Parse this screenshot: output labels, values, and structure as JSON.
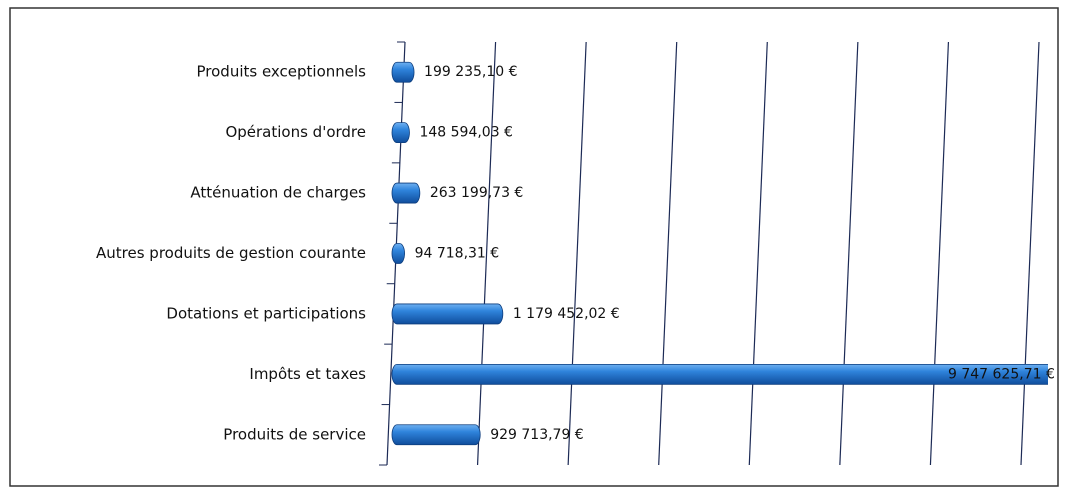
{
  "chart_data": {
    "type": "bar",
    "orientation": "horizontal",
    "categories": [
      "Produits exceptionnels",
      "Opérations d'ordre",
      "Atténuation de charges",
      "Autres produits de gestion courante",
      "Dotations et participations",
      "Impôts et taxes",
      "Produits de service"
    ],
    "values": [
      199235.1,
      148594.03,
      263199.73,
      94718.31,
      1179452.02,
      9747625.71,
      929713.79
    ],
    "value_labels": [
      "199 235,10 €",
      "148 594,03 €",
      "263 199,73 €",
      "94 718,31 €",
      "1 179 452,02 €",
      "9 747 625,71 €",
      "929 713,79 €"
    ],
    "color": "#1f6fcc",
    "xlim": [
      0,
      7000000
    ],
    "xticks": [
      0,
      1000000,
      2000000,
      3000000,
      4000000,
      5000000,
      6000000,
      7000000
    ],
    "grid": true
  }
}
